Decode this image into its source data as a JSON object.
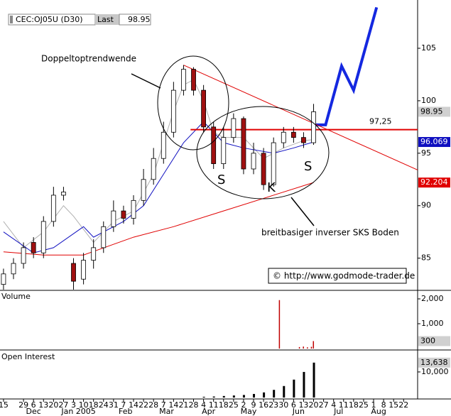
{
  "header": {
    "symbol": "CEC:OJ05U (D30)",
    "last_label": "Last"
  },
  "chart_data": [
    {
      "type": "candlestick",
      "xlim": [
        -0.35,
        41.4
      ],
      "ylim": [
        82,
        109.6
      ],
      "yticks": [
        85,
        90,
        95,
        100,
        105
      ],
      "xticks": [
        {
          "value": 0,
          "label": "15"
        },
        {
          "value": 2,
          "label": "29"
        },
        {
          "value": 3,
          "label": "6"
        },
        {
          "value": 4,
          "label": "13"
        },
        {
          "value": 5,
          "label": "20"
        },
        {
          "value": 6,
          "label": "27"
        },
        {
          "value": 7,
          "label": "3"
        },
        {
          "value": 8,
          "label": "10"
        },
        {
          "value": 9,
          "label": "18"
        },
        {
          "value": 10,
          "label": "24"
        },
        {
          "value": 11,
          "label": "31"
        },
        {
          "value": 12,
          "label": "7"
        },
        {
          "value": 13,
          "label": "14"
        },
        {
          "value": 14,
          "label": "22"
        },
        {
          "value": 15,
          "label": "28"
        },
        {
          "value": 16,
          "label": "7"
        },
        {
          "value": 17,
          "label": "14"
        },
        {
          "value": 18,
          "label": "21"
        },
        {
          "value": 19,
          "label": "28"
        },
        {
          "value": 20,
          "label": "4"
        },
        {
          "value": 21,
          "label": "11"
        },
        {
          "value": 22,
          "label": "18"
        },
        {
          "value": 23,
          "label": "25"
        },
        {
          "value": 24,
          "label": "2"
        },
        {
          "value": 25,
          "label": "9"
        },
        {
          "value": 26,
          "label": "16"
        },
        {
          "value": 27,
          "label": "23"
        },
        {
          "value": 28,
          "label": "30"
        },
        {
          "value": 29,
          "label": "6"
        },
        {
          "value": 30,
          "label": "13"
        },
        {
          "value": 31,
          "label": "20"
        },
        {
          "value": 32,
          "label": "27"
        },
        {
          "value": 33,
          "label": "4"
        },
        {
          "value": 34,
          "label": "11"
        },
        {
          "value": 35,
          "label": "18"
        },
        {
          "value": 36,
          "label": "25"
        },
        {
          "value": 37,
          "label": "1"
        },
        {
          "value": 38,
          "label": "8"
        },
        {
          "value": 39,
          "label": "15"
        },
        {
          "value": 40,
          "label": "22"
        }
      ],
      "months": [
        {
          "value": 3,
          "label": "Dec"
        },
        {
          "value": 7.5,
          "label": "Jan 2005"
        },
        {
          "value": 12.2,
          "label": "Feb"
        },
        {
          "value": 16.3,
          "label": "Mar"
        },
        {
          "value": 20.5,
          "label": "Apr"
        },
        {
          "value": 24.5,
          "label": "May"
        },
        {
          "value": 29.5,
          "label": "Jun"
        },
        {
          "value": 33.5,
          "label": "Jul"
        },
        {
          "value": 37.5,
          "label": "Aug"
        }
      ],
      "x": [
        0,
        1,
        2,
        3,
        4,
        5,
        6,
        7,
        8,
        9,
        10,
        11,
        12,
        13,
        14,
        15,
        16,
        17,
        18,
        19,
        20,
        21,
        22,
        23,
        24,
        25,
        26,
        27,
        28,
        29,
        30,
        31
      ],
      "open": [
        82.5,
        83.5,
        84.5,
        86.5,
        85.5,
        88.5,
        91,
        84.5,
        83,
        84.8,
        86,
        88,
        89.5,
        88.8,
        90.5,
        92.5,
        94.5,
        97,
        101,
        103,
        101,
        97.5,
        94,
        96.5,
        98.3,
        93.5,
        95,
        92,
        96,
        97,
        96.5,
        96
      ],
      "high": [
        84,
        85,
        86.5,
        87,
        89,
        91.8,
        91.8,
        85,
        85.5,
        86.8,
        88.5,
        90.5,
        90,
        91,
        93.5,
        95.5,
        98,
        101.8,
        103.4,
        103.2,
        101.5,
        98,
        97.5,
        98.8,
        98.5,
        96,
        95.5,
        96.5,
        97.5,
        97.5,
        97,
        99.7
      ],
      "low": [
        82,
        83,
        84,
        85,
        85,
        88,
        90.5,
        82,
        82.5,
        84,
        85.5,
        87.5,
        88.3,
        88.2,
        90,
        92,
        94,
        96.5,
        100.5,
        100.5,
        97,
        93.5,
        93.5,
        96,
        93,
        93,
        91.5,
        91.8,
        95.5,
        96,
        95.5,
        95.8
      ],
      "close": [
        83.5,
        84.5,
        86,
        85.5,
        88.5,
        91,
        91.3,
        82.8,
        84.8,
        86,
        88,
        89.5,
        88.8,
        90.5,
        92.5,
        94.5,
        97,
        101,
        103,
        101,
        97.5,
        94,
        96.5,
        98.3,
        93.5,
        95,
        92,
        96,
        97,
        96.5,
        96,
        98.95
      ],
      "up_color": "#ffffff",
      "down_color": "#a01010",
      "series": [
        {
          "color": "#b0b0b0",
          "x": [
            0,
            2,
            4,
            6,
            7,
            9,
            11,
            13,
            15,
            17,
            18,
            19,
            20,
            21,
            22,
            24,
            26,
            28,
            30,
            31
          ],
          "values": [
            88.5,
            86,
            87.5,
            90,
            89,
            86.5,
            88.5,
            89.5,
            93,
            99,
            101.5,
            102,
            100,
            97,
            96.5,
            96.5,
            94.5,
            95.5,
            96.2,
            96.3
          ]
        },
        {
          "color": "#1010c0",
          "x": [
            0,
            3,
            5,
            8,
            9,
            12,
            14,
            16,
            18,
            20,
            22,
            24,
            27,
            29,
            31
          ],
          "values": [
            87.5,
            85.5,
            86,
            88,
            87,
            88.5,
            90,
            93,
            96,
            98,
            96,
            95.5,
            95,
            95.5,
            96.069
          ]
        },
        {
          "color": "#e00000",
          "x": [
            0,
            4,
            8,
            13,
            17,
            22,
            27,
            31
          ],
          "values": [
            85.6,
            85.3,
            85.3,
            87,
            88,
            89.5,
            91,
            92.204
          ]
        },
        {
          "color": "#1428e0",
          "width": 4,
          "x": [
            30.9,
            32.2,
            33.8,
            35,
            37.3
          ],
          "values": [
            97.7,
            97.7,
            103.3,
            101,
            108.9
          ]
        },
        {
          "color": "#e00000",
          "x": [
            18,
            41.4
          ],
          "values": [
            103.4,
            93.4
          ]
        }
      ],
      "support": {
        "value": 97.25,
        "label": "97,25",
        "x": [
          18.7,
          41.4
        ],
        "color": "#e00000"
      },
      "annotations": {
        "top": "Doppeltoptrendwende",
        "bottom": "breitbasiger inverser SKS Boden",
        "s1": "S",
        "k": "K",
        "s2": "S",
        "copyright": "© http://www.godmode-trader.de"
      }
    },
    {
      "type": "bar",
      "title": "Volume",
      "ylim": [
        0,
        2314
      ],
      "yticks": [
        {
          "value": 1000,
          "label": "1,000"
        },
        {
          "value": 2000,
          "label": "2,000"
        }
      ],
      "x": [
        27.6,
        29.6,
        30,
        30.4,
        30.8,
        31
      ],
      "values": [
        1950,
        60,
        80,
        50,
        70,
        300
      ],
      "color": "#c00000"
    },
    {
      "type": "bar",
      "title": "Open Interest",
      "ylim": [
        0,
        18300
      ],
      "yticks": [
        {
          "value": 10000,
          "label": "10,000"
        }
      ],
      "x": [
        20,
        21,
        22,
        23,
        24,
        25,
        26,
        27,
        28,
        29,
        30,
        31
      ],
      "values": [
        300,
        400,
        600,
        800,
        1000,
        1400,
        2000,
        3000,
        4500,
        7000,
        10000,
        13638
      ],
      "value_labels": [
        null,
        null,
        null,
        null,
        null,
        null,
        null,
        null,
        null,
        null,
        null,
        "13,638"
      ],
      "color": "#000000"
    }
  ]
}
